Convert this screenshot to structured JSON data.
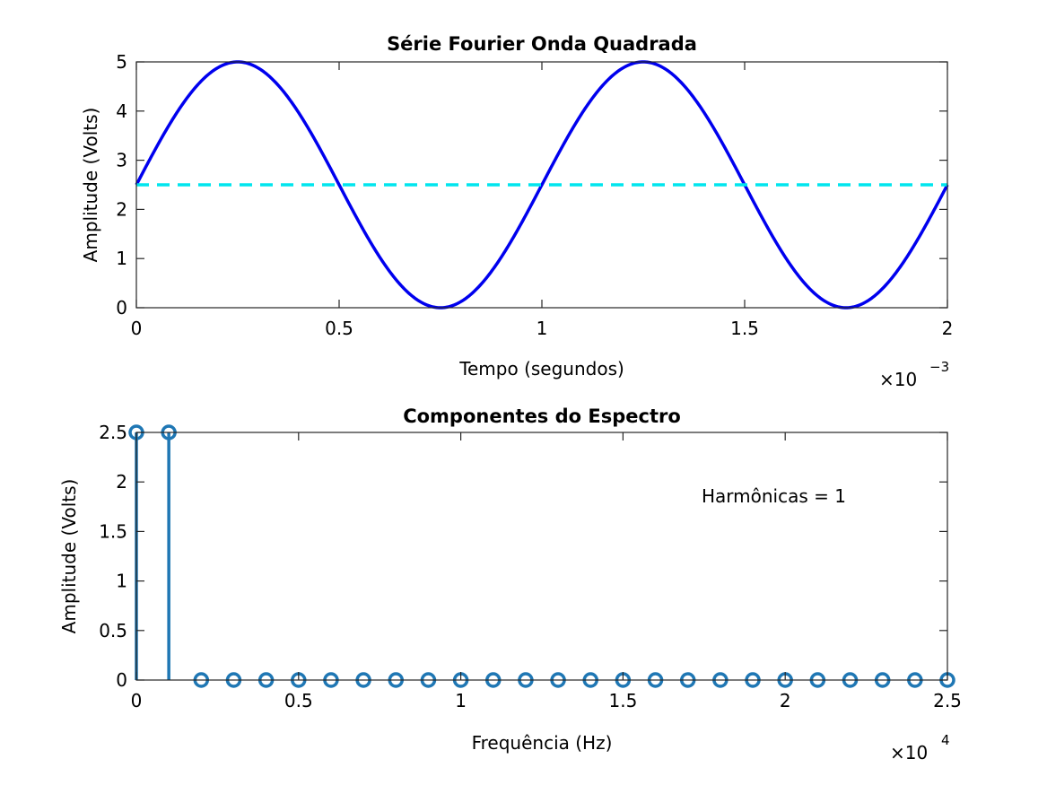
{
  "chart_data": [
    {
      "type": "line",
      "title": "Série Fourier Onda Quadrada",
      "xlabel": "Tempo (segundos)",
      "ylabel": "Amplitude (Volts)",
      "x_exponent_base": "×10",
      "x_exponent_power": "−3",
      "xlim": [
        0,
        0.002
      ],
      "ylim": [
        0,
        5
      ],
      "x_ticks": [
        0,
        0.0005,
        0.001,
        0.0015,
        0.002
      ],
      "x_tick_labels": [
        "0",
        "0.5",
        "1",
        "1.5",
        "2"
      ],
      "y_ticks": [
        0,
        1,
        2,
        3,
        4,
        5
      ],
      "y_tick_labels": [
        "0",
        "1",
        "2",
        "3",
        "4",
        "5"
      ],
      "grid": false,
      "series": [
        {
          "style": "solid",
          "color": "#0000ee",
          "function": "offset + amplitude*sin(2*pi*frequency*t)",
          "offset": 2.5,
          "amplitude": 2.5,
          "frequency": 1000
        },
        {
          "style": "dashed",
          "color": "#00e5ee",
          "x": [
            0,
            0.002
          ],
          "y": [
            2.5,
            2.5
          ]
        }
      ]
    },
    {
      "type": "stem",
      "title": "Componentes do Espectro",
      "xlabel": "Frequência (Hz)",
      "ylabel": "Amplitude (Volts)",
      "x_exponent_base": "×10",
      "x_exponent_power": "4",
      "xlim": [
        0,
        25000
      ],
      "ylim": [
        0,
        2.5
      ],
      "x_ticks": [
        0,
        5000,
        10000,
        15000,
        20000,
        25000
      ],
      "x_tick_labels": [
        "0",
        "0.5",
        "1",
        "1.5",
        "2",
        "2.5"
      ],
      "y_ticks": [
        0,
        0.5,
        1,
        1.5,
        2,
        2.5
      ],
      "y_tick_labels": [
        "0",
        "0.5",
        "1",
        "1.5",
        "2",
        "2.5"
      ],
      "grid": false,
      "annotation": "Harmônicas = 1",
      "color": "#1f77b4",
      "x": [
        0,
        1000,
        2000,
        3000,
        4000,
        5000,
        6000,
        7000,
        8000,
        9000,
        10000,
        11000,
        12000,
        13000,
        14000,
        15000,
        16000,
        17000,
        18000,
        19000,
        20000,
        21000,
        22000,
        23000,
        24000,
        25000
      ],
      "y": [
        2.5,
        2.5,
        0,
        0,
        0,
        0,
        0,
        0,
        0,
        0,
        0,
        0,
        0,
        0,
        0,
        0,
        0,
        0,
        0,
        0,
        0,
        0,
        0,
        0,
        0,
        0
      ]
    }
  ]
}
